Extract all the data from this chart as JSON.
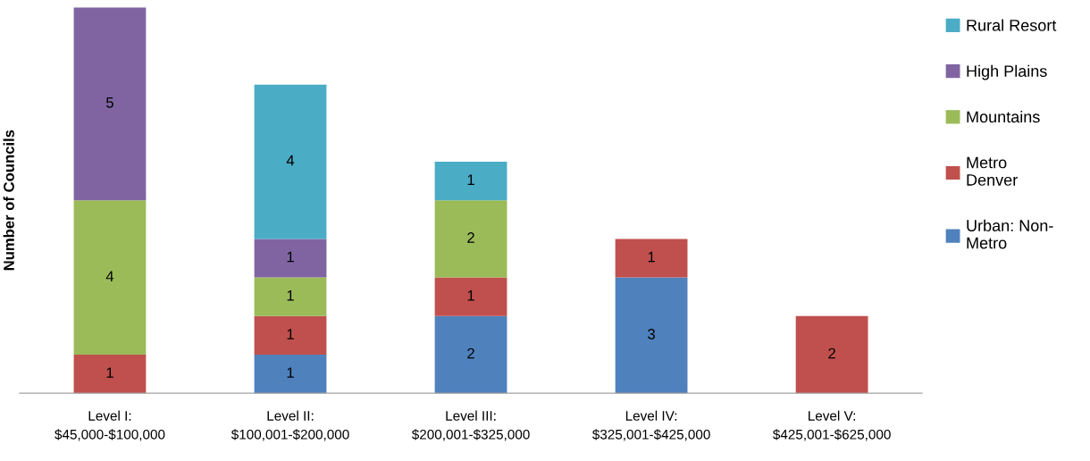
{
  "chart_data": {
    "type": "bar",
    "stacked": true,
    "ylabel": "Number of Councils",
    "categories": [
      "Level I:\n$45,000-$100,000",
      "Level II:\n$100,001-$200,000",
      "Level III:\n$200,001-$325,000",
      "Level IV:\n$325,001-$425,000",
      "Level V:\n$425,001-$625,000"
    ],
    "series": [
      {
        "name": "Urban: Non-\nMetro",
        "color": "#4f81bd",
        "values": [
          null,
          1,
          2,
          3,
          null
        ]
      },
      {
        "name": "Metro\nDenver",
        "color": "#c0504d",
        "values": [
          1,
          1,
          1,
          1,
          2
        ]
      },
      {
        "name": "Mountains",
        "color": "#9bbb59",
        "values": [
          4,
          1,
          2,
          null,
          null
        ]
      },
      {
        "name": "High Plains",
        "color": "#8064a2",
        "values": [
          5,
          1,
          null,
          null,
          null
        ]
      },
      {
        "name": "Rural Resort",
        "color": "#4bacc6",
        "values": [
          null,
          4,
          1,
          null,
          null
        ]
      }
    ],
    "data_labels": true,
    "legend": "right",
    "grid": false
  }
}
